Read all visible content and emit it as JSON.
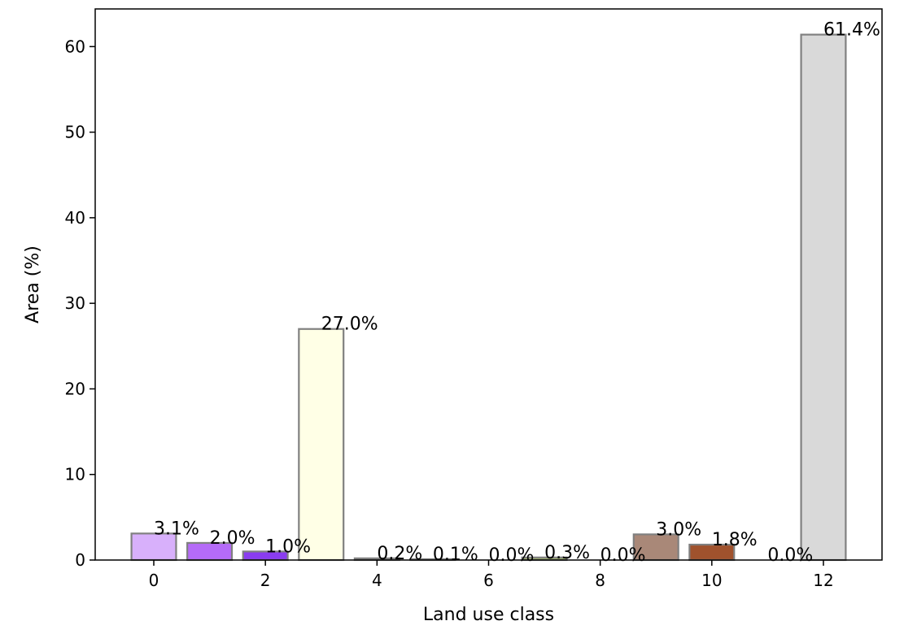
{
  "chart_data": {
    "type": "bar",
    "title": "",
    "xlabel": "Land use class",
    "ylabel": "Area (%)",
    "xlim": [
      -1.05,
      13.05
    ],
    "ylim": [
      0,
      64.4
    ],
    "xticks": [
      0,
      2,
      4,
      6,
      8,
      10,
      12
    ],
    "yticks": [
      0,
      10,
      20,
      30,
      40,
      50,
      60
    ],
    "grid": false,
    "legend": "none",
    "bar_edge_color": "#808080",
    "bars": [
      {
        "x": 0,
        "value": 3.1,
        "label": "3.1%",
        "color": "#d8b0fb"
      },
      {
        "x": 1,
        "value": 2.0,
        "label": "2.0%",
        "color": "#b56bf8"
      },
      {
        "x": 2,
        "value": 1.0,
        "label": "1.0%",
        "color": "#8a3cf0"
      },
      {
        "x": 3,
        "value": 27.0,
        "label": "27.0%",
        "color": "#ffffe6"
      },
      {
        "x": 4,
        "value": 0.2,
        "label": "0.2%",
        "color": "#d9d9d9"
      },
      {
        "x": 5,
        "value": 0.1,
        "label": "0.1%",
        "color": "#c8c8c8"
      },
      {
        "x": 6,
        "value": 0.0,
        "label": "0.0%",
        "color": "#c8c8c8"
      },
      {
        "x": 7,
        "value": 0.3,
        "label": "0.3%",
        "color": "#9bae6a"
      },
      {
        "x": 8,
        "value": 0.0,
        "label": "0.0%",
        "color": "#c8c8c8"
      },
      {
        "x": 9,
        "value": 3.0,
        "label": "3.0%",
        "color": "#a98878"
      },
      {
        "x": 10,
        "value": 1.8,
        "label": "1.8%",
        "color": "#a0522d"
      },
      {
        "x": 11,
        "value": 0.0,
        "label": "0.0%",
        "color": "#c8c8c8"
      },
      {
        "x": 12,
        "value": 61.4,
        "label": "61.4%",
        "color": "#d9d9d9"
      }
    ]
  }
}
